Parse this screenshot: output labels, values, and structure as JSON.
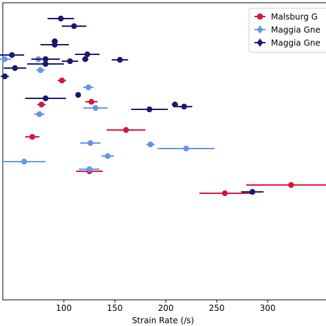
{
  "chart_data": {
    "type": "scatter",
    "xlabel": "Strain Rate (/s)",
    "ylabel": "",
    "title": "",
    "xlim": [
      40,
      364
    ],
    "xticks": [
      100,
      150,
      200,
      250,
      300
    ],
    "tick_labels": [
      "100",
      "150",
      "200",
      "250",
      "300"
    ],
    "grid": false,
    "legend_position": "top-right",
    "series": [
      {
        "name": "Malsburg G",
        "color": "#dc143c",
        "marker": "circle",
        "points": [
          {
            "x": 98,
            "xerr": 4,
            "row": 117
          },
          {
            "x": 78,
            "xerr": 4,
            "row": 152
          },
          {
            "x": 127,
            "xerr": 6,
            "row": 148
          },
          {
            "x": 161,
            "xerr": 19,
            "row": 189
          },
          {
            "x": 69,
            "xerr": 7,
            "row": 199
          },
          {
            "x": 125,
            "xerr": 13,
            "row": 249
          },
          {
            "x": 258,
            "xerr": 25,
            "row": 281
          },
          {
            "x": 323,
            "xerr": 44,
            "row": 269
          }
        ]
      },
      {
        "name": "Maggia Gne",
        "color": "#6495ed",
        "marker": "diamond",
        "points": [
          {
            "x": 42,
            "xerr": 6,
            "row": 86
          },
          {
            "x": 75,
            "xerr": 3,
            "row": 86
          },
          {
            "x": 77,
            "xerr": 4,
            "row": 102
          },
          {
            "x": 124,
            "xerr": 5,
            "row": 127
          },
          {
            "x": 131,
            "xerr": 12,
            "row": 157
          },
          {
            "x": 76,
            "xerr": 5,
            "row": 166
          },
          {
            "x": 126,
            "xerr": 10,
            "row": 208
          },
          {
            "x": 185,
            "xerr": 4,
            "row": 210
          },
          {
            "x": 220,
            "xerr": 28,
            "row": 216
          },
          {
            "x": 143,
            "xerr": 6,
            "row": 227
          },
          {
            "x": 61,
            "xerr": 21,
            "row": 235
          },
          {
            "x": 125,
            "xerr": 10,
            "row": 246
          }
        ]
      },
      {
        "name": "Maggia Gne",
        "color": "#191970",
        "marker": "diamond",
        "points": [
          {
            "x": 97,
            "xerr": 13,
            "row": 27
          },
          {
            "x": 110,
            "xerr": 12,
            "row": 38
          },
          {
            "x": 91,
            "xerr": 3,
            "row": 60
          },
          {
            "x": 91,
            "xerr": 14,
            "row": 65
          },
          {
            "x": 49,
            "xerr": 12,
            "row": 80
          },
          {
            "x": 82,
            "xerr": 14,
            "row": 86
          },
          {
            "x": 123,
            "xerr": 12,
            "row": 79
          },
          {
            "x": 121,
            "xerr": 3,
            "row": 86
          },
          {
            "x": 106,
            "xerr": 8,
            "row": 89
          },
          {
            "x": 155,
            "xerr": 8,
            "row": 87
          },
          {
            "x": 82,
            "xerr": 18,
            "row": 93
          },
          {
            "x": 52,
            "xerr": 11,
            "row": 99
          },
          {
            "x": 42,
            "xerr": 4,
            "row": 111
          },
          {
            "x": 82,
            "xerr": 20,
            "row": 143
          },
          {
            "x": 114,
            "xerr": 2,
            "row": 138
          },
          {
            "x": 184,
            "xerr": 18,
            "row": 159
          },
          {
            "x": 209,
            "xerr": 3,
            "row": 152
          },
          {
            "x": 218,
            "xerr": 8,
            "row": 155
          },
          {
            "x": 285,
            "xerr": 11,
            "row": 279
          }
        ]
      }
    ]
  }
}
